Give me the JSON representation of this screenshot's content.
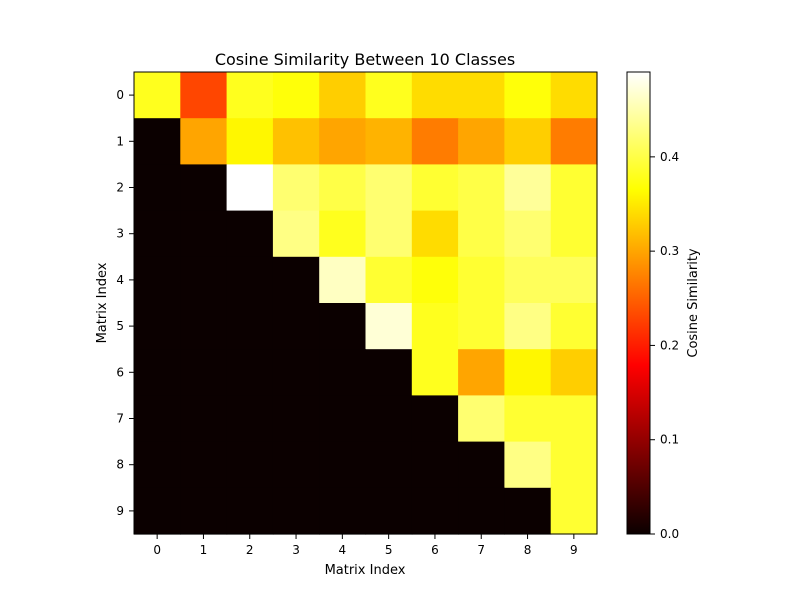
{
  "chart_data": {
    "type": "heatmap",
    "title": "Cosine Similarity Between 10 Classes",
    "xlabel": "Matrix Index",
    "ylabel": "Matrix Index",
    "x_categories": [
      "0",
      "1",
      "2",
      "3",
      "4",
      "5",
      "6",
      "7",
      "8",
      "9"
    ],
    "y_categories": [
      "0",
      "1",
      "2",
      "3",
      "4",
      "5",
      "6",
      "7",
      "8",
      "9"
    ],
    "colormap": "hot",
    "vmin": 0.0,
    "vmax": 0.49,
    "colorbar": {
      "label": "Cosine Similarity",
      "ticks": [
        0.0,
        0.1,
        0.2,
        0.3,
        0.4
      ],
      "tick_labels": [
        "0.0",
        "0.1",
        "0.2",
        "0.3",
        "0.4"
      ]
    },
    "values": [
      [
        0.38,
        0.23,
        0.38,
        0.37,
        0.33,
        0.38,
        0.34,
        0.34,
        0.37,
        0.34
      ],
      [
        0.0,
        0.3,
        0.36,
        0.32,
        0.3,
        0.31,
        0.27,
        0.3,
        0.33,
        0.27
      ],
      [
        0.0,
        0.0,
        0.49,
        0.42,
        0.4,
        0.42,
        0.39,
        0.4,
        0.44,
        0.39
      ],
      [
        0.0,
        0.0,
        0.0,
        0.43,
        0.38,
        0.42,
        0.34,
        0.4,
        0.42,
        0.39
      ],
      [
        0.0,
        0.0,
        0.0,
        0.0,
        0.46,
        0.39,
        0.37,
        0.39,
        0.41,
        0.41
      ],
      [
        0.0,
        0.0,
        0.0,
        0.0,
        0.0,
        0.47,
        0.38,
        0.39,
        0.43,
        0.39
      ],
      [
        0.0,
        0.0,
        0.0,
        0.0,
        0.0,
        0.0,
        0.38,
        0.3,
        0.36,
        0.33
      ],
      [
        0.0,
        0.0,
        0.0,
        0.0,
        0.0,
        0.0,
        0.0,
        0.42,
        0.39,
        0.39
      ],
      [
        0.0,
        0.0,
        0.0,
        0.0,
        0.0,
        0.0,
        0.0,
        0.0,
        0.43,
        0.39
      ],
      [
        0.0,
        0.0,
        0.0,
        0.0,
        0.0,
        0.0,
        0.0,
        0.0,
        0.0,
        0.39
      ]
    ]
  }
}
